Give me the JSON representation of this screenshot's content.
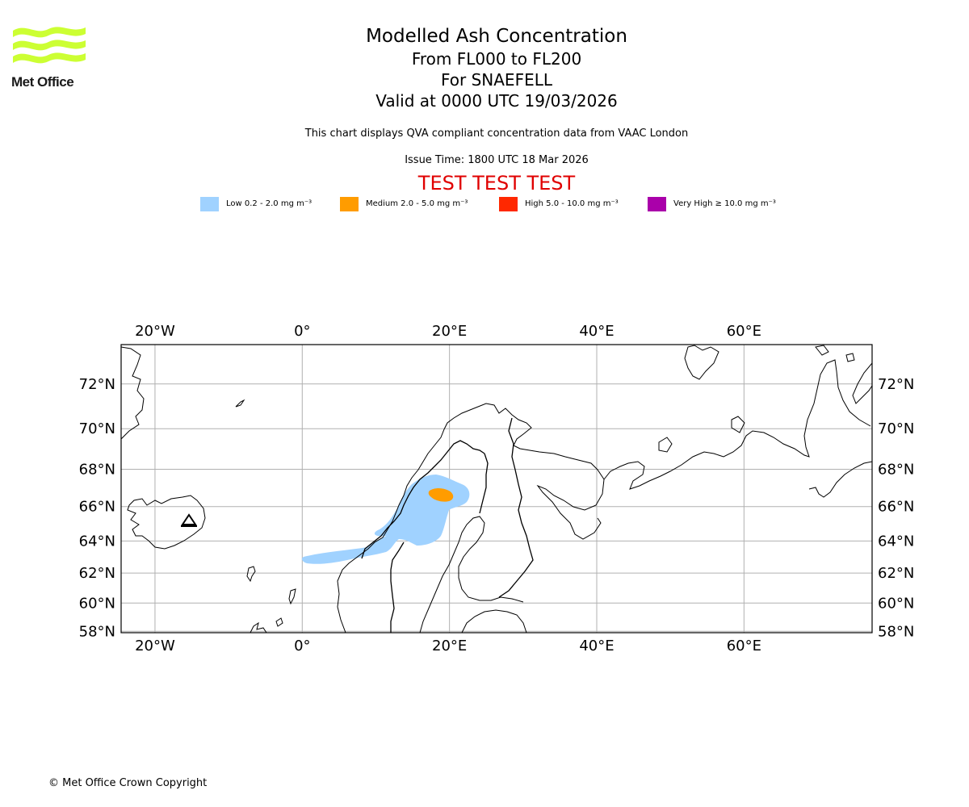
{
  "logo": {
    "text": "Met Office",
    "color": "#ccff33"
  },
  "header": {
    "title": "Modelled Ash Concentration",
    "levels": "From FL000 to FL200",
    "volcano": "For SNAEFELL",
    "valid": "Valid at 0000 UTC 19/03/2026",
    "disclaimer": "This chart displays QVA compliant concentration data from VAAC London",
    "issue_time": "Issue Time: 1800 UTC 18 Mar 2026",
    "test_banner": "TEST TEST TEST"
  },
  "legend": [
    {
      "label": "Low 0.2 - 2.0 mg m⁻³",
      "color": "#a0d2ff"
    },
    {
      "label": "Medium 2.0 - 5.0 mg m⁻³",
      "color": "#ff9c00"
    },
    {
      "label": "High 5.0 - 10.0 mg m⁻³",
      "color": "#ff2800"
    },
    {
      "label": "Very High ≥ 10.0 mg m⁻³",
      "color": "#aa00aa"
    }
  ],
  "map": {
    "lon_ticks": [
      {
        "value": -20,
        "label": "20°W"
      },
      {
        "value": 0,
        "label": "0°"
      },
      {
        "value": 20,
        "label": "20°E"
      },
      {
        "value": 40,
        "label": "40°E"
      },
      {
        "value": 60,
        "label": "60°E"
      }
    ],
    "lat_ticks": [
      {
        "value": 72,
        "label": "72°N"
      },
      {
        "value": 70,
        "label": "70°N"
      },
      {
        "value": 68,
        "label": "68°N"
      },
      {
        "value": 66,
        "label": "66°N"
      },
      {
        "value": 64,
        "label": "64°N"
      },
      {
        "value": 62,
        "label": "62°N"
      },
      {
        "value": 60,
        "label": "60°N"
      },
      {
        "value": 58,
        "label": "58°N"
      }
    ],
    "ash_low_color": "#a0d2ff",
    "ash_medium_color": "#ff9c00"
  },
  "footer": {
    "copyright": "© Met Office Crown Copyright"
  }
}
